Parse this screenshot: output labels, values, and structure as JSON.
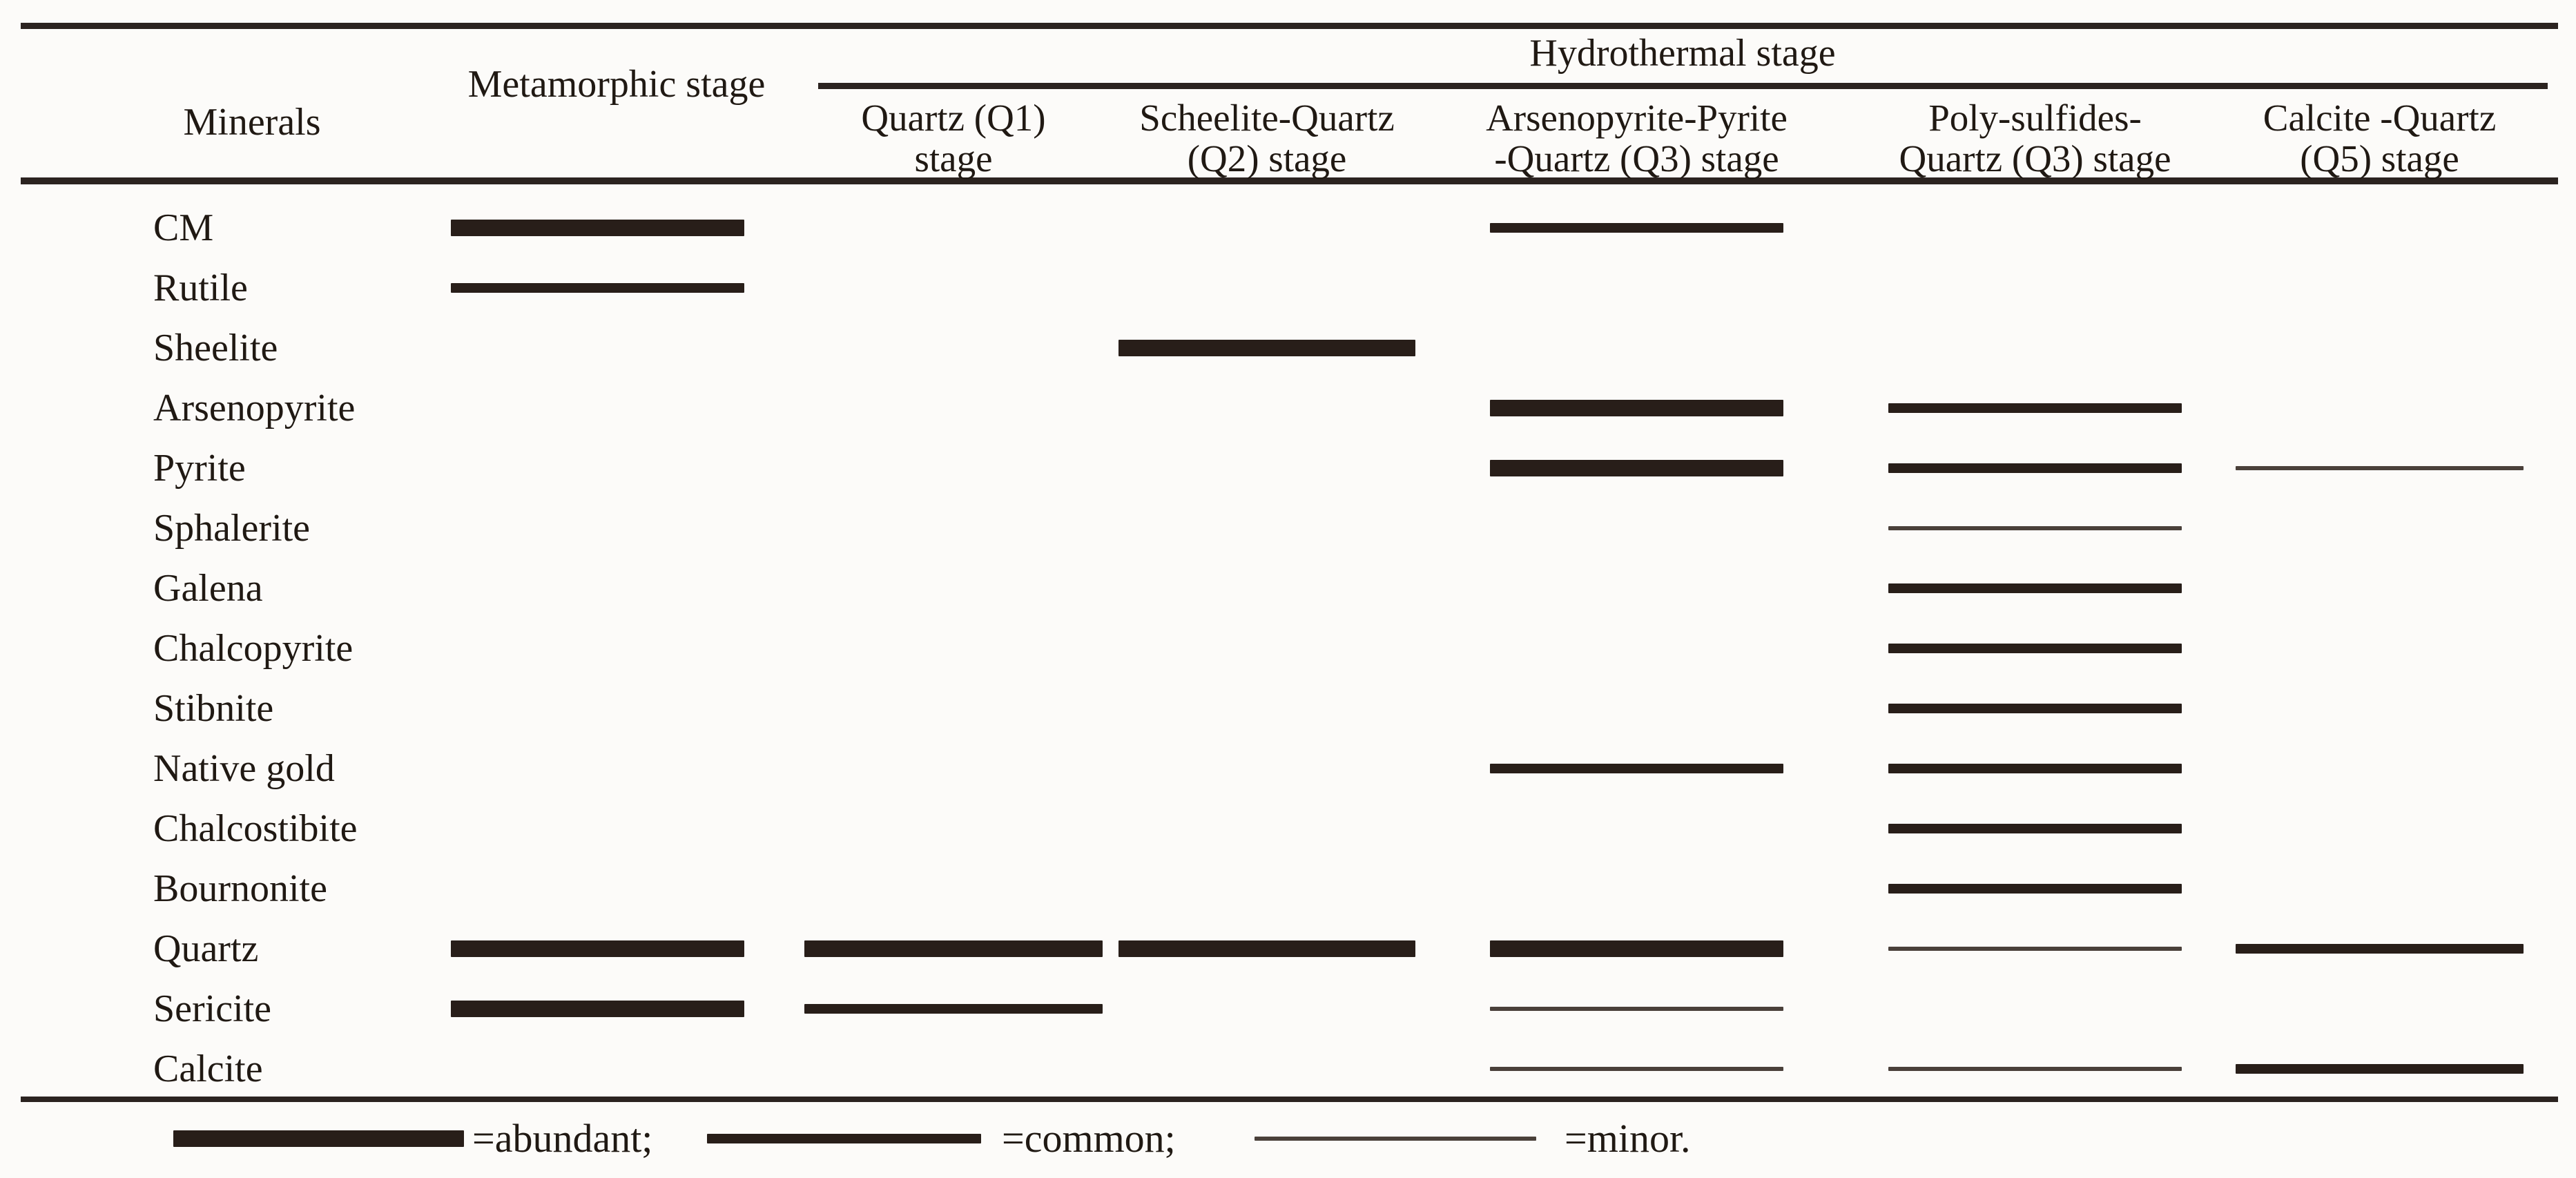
{
  "table": {
    "minerals_header": "Minerals",
    "metamorphic_header": "Metamorphic stage",
    "hydrothermal_header": "Hydrothermal stage",
    "substages": [
      {
        "id": "q1",
        "line1": "Quartz (Q1)",
        "line2": "stage"
      },
      {
        "id": "q2",
        "line1": "Scheelite-Quartz",
        "line2": "(Q2) stage"
      },
      {
        "id": "q3",
        "line1": "Arsenopyrite-Pyrite",
        "line2": "-Quartz (Q3) stage"
      },
      {
        "id": "q4",
        "line1": "Poly-sulfides-",
        "line2": "Quartz (Q3) stage"
      },
      {
        "id": "q5",
        "line1": "Calcite -Quartz",
        "line2": "(Q5) stage"
      }
    ],
    "rows": [
      {
        "name": "CM",
        "bars": [
          {
            "col": "meta",
            "level": "abundant"
          },
          {
            "col": "q3",
            "level": "common"
          }
        ]
      },
      {
        "name": "Rutile",
        "bars": [
          {
            "col": "meta",
            "level": "common"
          }
        ]
      },
      {
        "name": "Sheelite",
        "bars": [
          {
            "col": "q2",
            "level": "abundant"
          }
        ]
      },
      {
        "name": "Arsenopyrite",
        "bars": [
          {
            "col": "q3",
            "level": "abundant"
          },
          {
            "col": "q4",
            "level": "common"
          }
        ]
      },
      {
        "name": "Pyrite",
        "bars": [
          {
            "col": "q3",
            "level": "abundant"
          },
          {
            "col": "q4",
            "level": "common"
          },
          {
            "col": "q5",
            "level": "minor"
          }
        ]
      },
      {
        "name": "Sphalerite",
        "bars": [
          {
            "col": "q4",
            "level": "minor"
          }
        ]
      },
      {
        "name": "Galena",
        "bars": [
          {
            "col": "q4",
            "level": "common"
          }
        ]
      },
      {
        "name": "Chalcopyrite",
        "bars": [
          {
            "col": "q4",
            "level": "common"
          }
        ]
      },
      {
        "name": "Stibnite",
        "bars": [
          {
            "col": "q4",
            "level": "common"
          }
        ]
      },
      {
        "name": "Native gold",
        "bars": [
          {
            "col": "q3",
            "level": "common"
          },
          {
            "col": "q4",
            "level": "common"
          }
        ]
      },
      {
        "name": "Chalcostibite",
        "bars": [
          {
            "col": "q4",
            "level": "common"
          }
        ]
      },
      {
        "name": "Bournonite",
        "bars": [
          {
            "col": "q4",
            "level": "common"
          }
        ]
      },
      {
        "name": "Quartz",
        "bars": [
          {
            "col": "meta",
            "level": "abundant"
          },
          {
            "col": "q1",
            "level": "abundant"
          },
          {
            "col": "q2",
            "level": "abundant"
          },
          {
            "col": "q3",
            "level": "abundant"
          },
          {
            "col": "q4",
            "level": "minor"
          },
          {
            "col": "q5",
            "level": "common"
          }
        ]
      },
      {
        "name": "Sericite",
        "bars": [
          {
            "col": "meta",
            "level": "abundant"
          },
          {
            "col": "q1",
            "level": "common"
          },
          {
            "col": "q3",
            "level": "minor"
          }
        ]
      },
      {
        "name": "Calcite",
        "bars": [
          {
            "col": "q3",
            "level": "minor"
          },
          {
            "col": "q4",
            "level": "minor"
          },
          {
            "col": "q5",
            "level": "common"
          }
        ]
      }
    ]
  },
  "legend": [
    {
      "level": "abundant",
      "label": "=abundant;"
    },
    {
      "level": "common",
      "label": "=common;"
    },
    {
      "level": "minor",
      "label": "=minor."
    }
  ],
  "colors": {
    "bar": "#281e19",
    "bar_minor": "#4a403a",
    "rule": "#2b2320",
    "text": "#201913",
    "background": "#fcfbf9"
  },
  "chart_data": {
    "type": "table",
    "columns": [
      "Metamorphic stage",
      "Quartz (Q1) stage",
      "Scheelite-Quartz (Q2) stage",
      "Arsenopyrite-Pyrite-Quartz (Q3) stage",
      "Poly-sulfides-Quartz (Q3) stage",
      "Calcite -Quartz (Q5) stage"
    ],
    "column_group": {
      "label": "Hydrothermal stage",
      "spans_columns": [
        1,
        2,
        3,
        4,
        5
      ]
    },
    "rows": [
      "CM",
      "Rutile",
      "Sheelite",
      "Arsenopyrite",
      "Pyrite",
      "Sphalerite",
      "Galena",
      "Chalcopyrite",
      "Stibnite",
      "Native gold",
      "Chalcostibite",
      "Bournonite",
      "Quartz",
      "Sericite",
      "Calcite"
    ],
    "values": [
      [
        "abundant",
        null,
        null,
        "common",
        null,
        null
      ],
      [
        "common",
        null,
        null,
        null,
        null,
        null
      ],
      [
        null,
        null,
        "abundant",
        null,
        null,
        null
      ],
      [
        null,
        null,
        null,
        "abundant",
        "common",
        null
      ],
      [
        null,
        null,
        null,
        "abundant",
        "common",
        "minor"
      ],
      [
        null,
        null,
        null,
        null,
        "minor",
        null
      ],
      [
        null,
        null,
        null,
        null,
        "common",
        null
      ],
      [
        null,
        null,
        null,
        null,
        "common",
        null
      ],
      [
        null,
        null,
        null,
        null,
        "common",
        null
      ],
      [
        null,
        null,
        null,
        "common",
        "common",
        null
      ],
      [
        null,
        null,
        null,
        null,
        "common",
        null
      ],
      [
        null,
        null,
        null,
        null,
        "common",
        null
      ],
      [
        "abundant",
        "abundant",
        "abundant",
        "abundant",
        "minor",
        "common"
      ],
      [
        "abundant",
        "common",
        null,
        "minor",
        null,
        null
      ],
      [
        null,
        null,
        null,
        "minor",
        "minor",
        "common"
      ]
    ],
    "legend": {
      "abundant": "thick bar",
      "common": "medium bar",
      "minor": "thin bar"
    },
    "layout": {
      "grid": false,
      "legend_position": "bottom"
    }
  }
}
